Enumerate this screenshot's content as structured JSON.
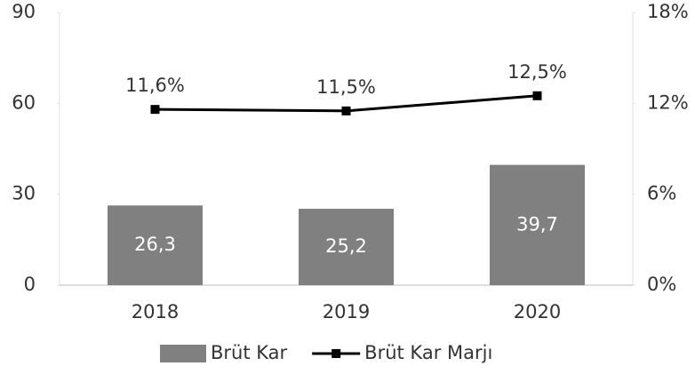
{
  "chart_data": {
    "type": "bar",
    "categories": [
      "2018",
      "2019",
      "2020"
    ],
    "series": [
      {
        "name": "Brüt Kar",
        "type": "bar",
        "color": "#808080",
        "values": [
          26.3,
          25.2,
          39.7
        ],
        "value_labels": [
          "26,3",
          "25,2",
          "39,7"
        ]
      },
      {
        "name": "Brüt Kar Marjı",
        "type": "line",
        "axis": "y2",
        "color": "#000000",
        "values": [
          11.6,
          11.5,
          12.5
        ],
        "value_labels": [
          "11,6%",
          "11,5%",
          "12,5%"
        ]
      }
    ],
    "ylim": [
      0,
      90
    ],
    "yticks": [
      0,
      30,
      60,
      90
    ],
    "y2lim": [
      0,
      18
    ],
    "y2ticks": [
      {
        "value": 0,
        "label": "0%"
      },
      {
        "value": 6,
        "label": "6%"
      },
      {
        "value": 12,
        "label": "12%"
      },
      {
        "value": 18,
        "label": "18%"
      }
    ],
    "legend": "bottom"
  }
}
